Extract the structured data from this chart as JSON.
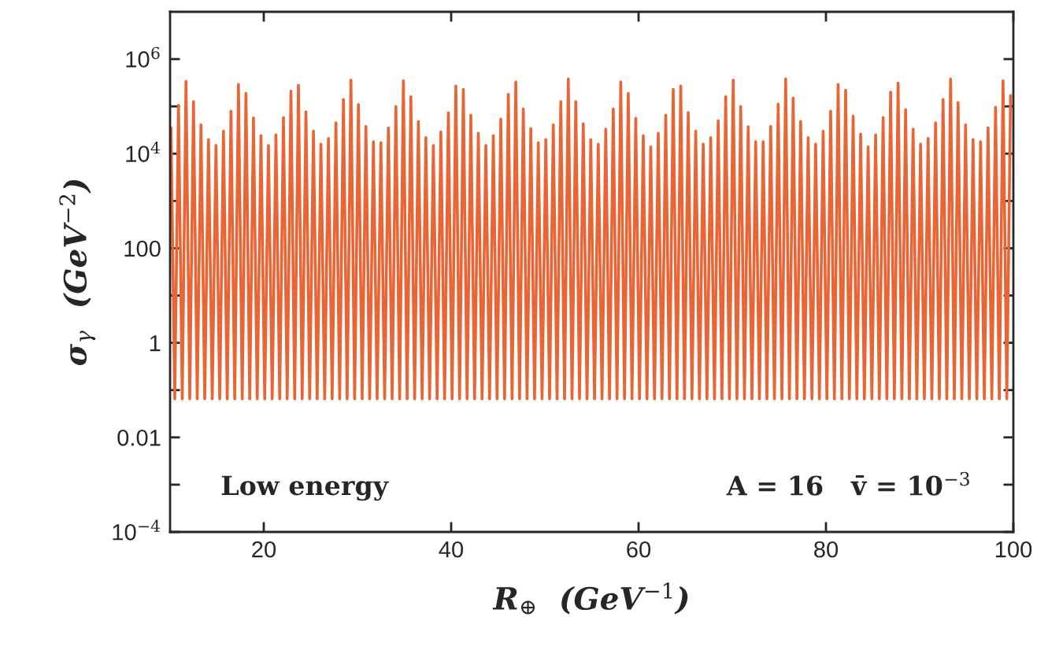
{
  "chart_data": {
    "type": "line",
    "xlabel": "R$_{⊕}$  (GeV$^{−1}$)",
    "ylabel": "σ$_{γ}$  (GeV$^{−2}$)",
    "annotations": [
      "Low energy",
      "A = 16   v̄ = 10$^{−3}$"
    ],
    "log": "y",
    "xlim": [
      10,
      100
    ],
    "xticks": [
      20,
      40,
      60,
      80,
      100
    ],
    "ylim": [
      0.0001,
      10000000
    ],
    "yticks": [
      {
        "value": 0.0001,
        "label": "10$^{−4}$"
      },
      {
        "value": 0.001,
        "label": null
      },
      0.01,
      {
        "value": 0.1,
        "label": null
      },
      1,
      {
        "value": 10,
        "label": null
      },
      100,
      {
        "value": 1000,
        "label": null
      },
      {
        "value": 10000,
        "label": "10$^{4}$"
      },
      {
        "value": 100000,
        "label": null
      },
      {
        "value": 1000000,
        "label": "10$^{6}$"
      }
    ],
    "series": [
      {
        "color": "#ea6535",
        "x": [
          10.1,
          10.5,
          10.9,
          11.3,
          11.7,
          12.1,
          12.5,
          12.9,
          13.3,
          13.7,
          14.1,
          14.5,
          14.9,
          15.3,
          15.7,
          16.1,
          16.5,
          16.9,
          17.3,
          17.7,
          18.1,
          18.5,
          18.9,
          19.3,
          19.7,
          20.1,
          20.5,
          20.9,
          21.3,
          21.7,
          22.1,
          22.5,
          22.9,
          23.3,
          23.7,
          24.1,
          24.5,
          24.9,
          25.3,
          25.7,
          26.1,
          26.5,
          26.9,
          27.3,
          27.7,
          28.1,
          28.5,
          28.9,
          29.3,
          29.7,
          30.1,
          30.5,
          30.9,
          31.3,
          31.7,
          32.1,
          32.5,
          32.9,
          33.3,
          33.7,
          34.1,
          34.5,
          34.9,
          35.3,
          35.7,
          36.1,
          36.5,
          36.9,
          37.3,
          37.7,
          38.1,
          38.5,
          38.9,
          39.3,
          39.7,
          40.1,
          40.5,
          40.9,
          41.3,
          41.7,
          42.1,
          42.5,
          42.9,
          43.3,
          43.7,
          44.1,
          44.5,
          44.9,
          45.3,
          45.7,
          46.1,
          46.5,
          46.9,
          47.3,
          47.7,
          48.1,
          48.5,
          48.9,
          49.3,
          49.7,
          50.1,
          50.5,
          50.9,
          51.3,
          51.7,
          52.1,
          52.5,
          52.9,
          53.3,
          53.7,
          54.1,
          54.5,
          54.9,
          55.3,
          55.7,
          56.1,
          56.5,
          56.9,
          57.3,
          57.7,
          58.1,
          58.5,
          58.9,
          59.3,
          59.7,
          60.1,
          60.5,
          60.9,
          61.3,
          61.7,
          62.1,
          62.5,
          62.9,
          63.3,
          63.7,
          64.1,
          64.5,
          64.9,
          65.3,
          65.7,
          66.1,
          66.5,
          66.9,
          67.3,
          67.7,
          68.1,
          68.5,
          68.9,
          69.3,
          69.7,
          70.1,
          70.5,
          70.9,
          71.3,
          71.7,
          72.1,
          72.5,
          72.9,
          73.3,
          73.7,
          74.1,
          74.5,
          74.9,
          75.3,
          75.7,
          76.1,
          76.5,
          76.9,
          77.3,
          77.7,
          78.1,
          78.5,
          78.9,
          79.3,
          79.7,
          80.1,
          80.5,
          80.9,
          81.3,
          81.7,
          82.1,
          82.5,
          82.9,
          83.3,
          83.7,
          84.1,
          84.5,
          84.9,
          85.3,
          85.7,
          86.1,
          86.5,
          86.9,
          87.3,
          87.7,
          88.1,
          88.5,
          88.9,
          89.3,
          89.7,
          90.1,
          90.5,
          90.9,
          91.3,
          91.7,
          92.1,
          92.5,
          92.9,
          93.3,
          93.7,
          94.1,
          94.5,
          94.9,
          95.3,
          95.7,
          96.1,
          96.5,
          96.9,
          97.3,
          97.7,
          98.1,
          98.5,
          98.9,
          99.3,
          99.7
        ],
        "values": [
          35000,
          0.065,
          105000,
          0.065,
          340000,
          0.065,
          126000,
          0.065,
          41000,
          0.065,
          20000,
          0.065,
          15000,
          0.065,
          30000,
          0.065,
          79000,
          0.065,
          290000,
          0.065,
          190000,
          0.065,
          57000,
          0.065,
          24000,
          0.065,
          15000,
          0.065,
          25000,
          0.065,
          58000,
          0.065,
          210000,
          0.065,
          280000,
          0.065,
          77000,
          0.065,
          30000,
          0.065,
          16000,
          0.065,
          21000,
          0.065,
          45000,
          0.065,
          140000,
          0.065,
          360000,
          0.065,
          110000,
          0.065,
          38000,
          0.065,
          18000,
          0.065,
          17000,
          0.065,
          35000,
          0.065,
          100000,
          0.065,
          350000,
          0.065,
          160000,
          0.065,
          48000,
          0.065,
          22000,
          0.065,
          15000,
          0.065,
          29000,
          0.065,
          73000,
          0.065,
          270000,
          0.065,
          230000,
          0.065,
          65000,
          0.065,
          27000,
          0.065,
          15000,
          0.065,
          24000,
          0.065,
          54000,
          0.065,
          180000,
          0.065,
          330000,
          0.065,
          89000,
          0.065,
          34000,
          0.065,
          17000,
          0.065,
          20000,
          0.065,
          41000,
          0.065,
          126000,
          0.065,
          380000,
          0.065,
          126000,
          0.065,
          43000,
          0.065,
          20000,
          0.065,
          16000,
          0.065,
          33000,
          0.065,
          89000,
          0.065,
          330000,
          0.065,
          190000,
          0.065,
          56000,
          0.065,
          24000,
          0.065,
          14000,
          0.065,
          27000,
          0.065,
          65000,
          0.065,
          230000,
          0.065,
          270000,
          0.065,
          74000,
          0.065,
          30000,
          0.065,
          16000,
          0.065,
          22000,
          0.065,
          50000,
          0.065,
          160000,
          0.065,
          360000,
          0.065,
          100000,
          0.065,
          37000,
          0.065,
          18000,
          0.065,
          18000,
          0.065,
          38000,
          0.065,
          112000,
          0.065,
          380000,
          0.065,
          150000,
          0.065,
          48000,
          0.065,
          22000,
          0.065,
          16000,
          0.065,
          30000,
          0.065,
          79000,
          0.065,
          290000,
          0.065,
          220000,
          0.065,
          62000,
          0.065,
          26000,
          0.065,
          14000,
          0.065,
          25000,
          0.065,
          58000,
          0.065,
          200000,
          0.065,
          310000,
          0.065,
          85000,
          0.065,
          33000,
          0.065,
          16000,
          0.065,
          21000,
          0.065,
          45000,
          0.065,
          140000,
          0.065,
          380000,
          0.065,
          120000,
          0.065,
          41000,
          0.065,
          20000,
          0.065,
          18000,
          0.065,
          35000,
          0.065,
          96000,
          0.065,
          350000,
          0.065,
          170000
        ]
      }
    ]
  }
}
